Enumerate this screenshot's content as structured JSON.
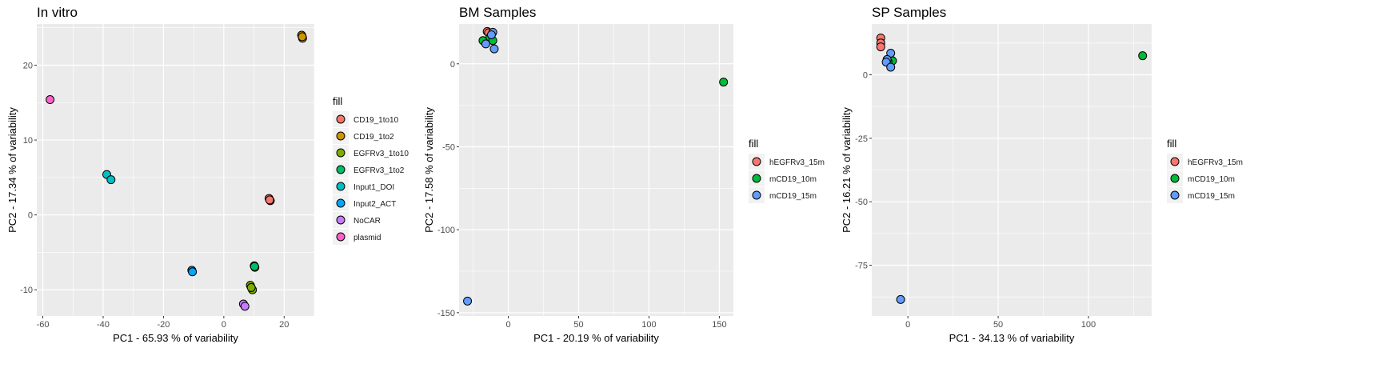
{
  "chart_data": [
    {
      "type": "scatter",
      "title": "In vitro",
      "xlabel": "PC1 - 65.93 % of variability",
      "ylabel": "PC2 - 17.34 % of variability",
      "xlim": [
        -62,
        30
      ],
      "ylim": [
        -13.5,
        25.5
      ],
      "x_ticks": [
        -60,
        -40,
        -20,
        0,
        20
      ],
      "y_ticks": [
        -10,
        0,
        10,
        20
      ],
      "grid": true,
      "legend_title": "fill",
      "legend_position": "right",
      "series": [
        {
          "name": "CD19_1to10",
          "color": "#F8766D",
          "points": [
            [
              15.0,
              2.2
            ],
            [
              15.4,
              1.9
            ],
            [
              15.2,
              2.0
            ]
          ]
        },
        {
          "name": "CD19_1to2",
          "color": "#CD9600",
          "points": [
            [
              25.8,
              24.0
            ],
            [
              26.1,
              23.6
            ],
            [
              26.0,
              23.8
            ]
          ]
        },
        {
          "name": "EGFRv3_1to10",
          "color": "#7CAE00",
          "points": [
            [
              9.5,
              -10.0
            ],
            [
              8.8,
              -9.4
            ],
            [
              9.1,
              -9.7
            ]
          ]
        },
        {
          "name": "EGFRv3_1to2",
          "color": "#00BE67",
          "points": [
            [
              10.1,
              -6.8
            ],
            [
              10.3,
              -7.0
            ],
            [
              10.2,
              -6.9
            ]
          ]
        },
        {
          "name": "Input1_DOI",
          "color": "#00BFC4",
          "points": [
            [
              -38.8,
              5.4
            ],
            [
              -37.4,
              4.7
            ]
          ]
        },
        {
          "name": "Input2_ACT",
          "color": "#00A9FF",
          "points": [
            [
              -10.6,
              -7.4
            ],
            [
              -10.4,
              -7.6
            ]
          ]
        },
        {
          "name": "NoCAR",
          "color": "#C77CFF",
          "points": [
            [
              6.5,
              -11.9
            ],
            [
              7.0,
              -12.2
            ]
          ]
        },
        {
          "name": "plasmid",
          "color": "#FF61CC",
          "points": [
            [
              -57.6,
              15.4
            ]
          ]
        }
      ]
    },
    {
      "type": "scatter",
      "title": "BM Samples",
      "xlabel": "PC1 - 20.19 % of variability",
      "ylabel": "PC2 - 17.58 % of variability",
      "xlim": [
        -35,
        160
      ],
      "ylim": [
        -152,
        24
      ],
      "x_ticks": [
        0,
        50,
        100,
        150
      ],
      "y_ticks": [
        -150,
        -100,
        -50,
        0
      ],
      "grid": true,
      "legend_title": "fill",
      "legend_position": "right",
      "series": [
        {
          "name": "hEGFRv3_15m",
          "color": "#F8766D",
          "points": [
            [
              -15,
              19.5
            ],
            [
              -14,
              18.7
            ]
          ]
        },
        {
          "name": "mCD19_10m",
          "color": "#00BA38",
          "points": [
            [
              -18,
              14
            ],
            [
              -13,
              16
            ],
            [
              -11,
              14
            ],
            [
              153,
              -11
            ]
          ]
        },
        {
          "name": "mCD19_15m",
          "color": "#619CFF",
          "points": [
            [
              -11,
              19
            ],
            [
              -12,
              17.5
            ],
            [
              -10,
              9
            ],
            [
              -16,
              12
            ],
            [
              -29,
              -143
            ]
          ]
        }
      ]
    },
    {
      "type": "scatter",
      "title": "SP Samples",
      "xlabel": "PC1 - 34.13 % of variability",
      "ylabel": "PC2 - 16.21 % of variability",
      "xlim": [
        -20,
        135
      ],
      "ylim": [
        -95,
        20
      ],
      "x_ticks": [
        0,
        50,
        100
      ],
      "y_ticks": [
        -75,
        -50,
        -25,
        0
      ],
      "grid": true,
      "legend_title": "fill",
      "legend_position": "right",
      "series": [
        {
          "name": "hEGFRv3_15m",
          "color": "#F8766D",
          "points": [
            [
              -15,
              14.5
            ],
            [
              -15,
              12.5
            ],
            [
              -15,
              11
            ]
          ]
        },
        {
          "name": "mCD19_10m",
          "color": "#00BA38",
          "points": [
            [
              -8.5,
              5.5
            ],
            [
              -11,
              5.2
            ],
            [
              130,
              7.5
            ]
          ]
        },
        {
          "name": "mCD19_15m",
          "color": "#619CFF",
          "points": [
            [
              -9.5,
              8.5
            ],
            [
              -11.5,
              6
            ],
            [
              -12,
              5
            ],
            [
              -9.5,
              3
            ],
            [
              -4,
              -88.5
            ]
          ]
        }
      ]
    }
  ]
}
